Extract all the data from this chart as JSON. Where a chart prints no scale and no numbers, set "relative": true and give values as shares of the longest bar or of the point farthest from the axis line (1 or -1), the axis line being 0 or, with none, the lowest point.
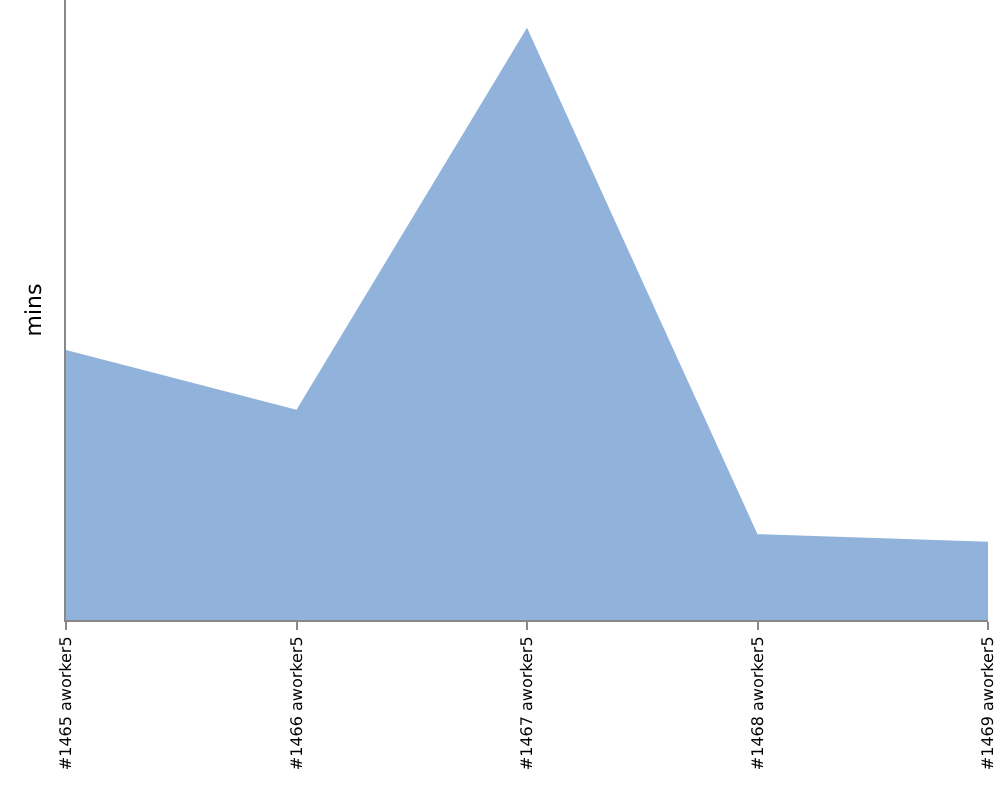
{
  "chart_data": {
    "type": "area",
    "ylabel": "mins",
    "relative": true,
    "categories": [
      "#1465 aworker5",
      "#1466 aworker5",
      "#1467 aworker5",
      "#1468 aworker5",
      "#1469 aworker5"
    ],
    "series": [
      {
        "color": "#91b3db",
        "values": [
          0.456,
          0.355,
          1,
          0.145,
          0.132
        ]
      }
    ],
    "grid": false
  }
}
